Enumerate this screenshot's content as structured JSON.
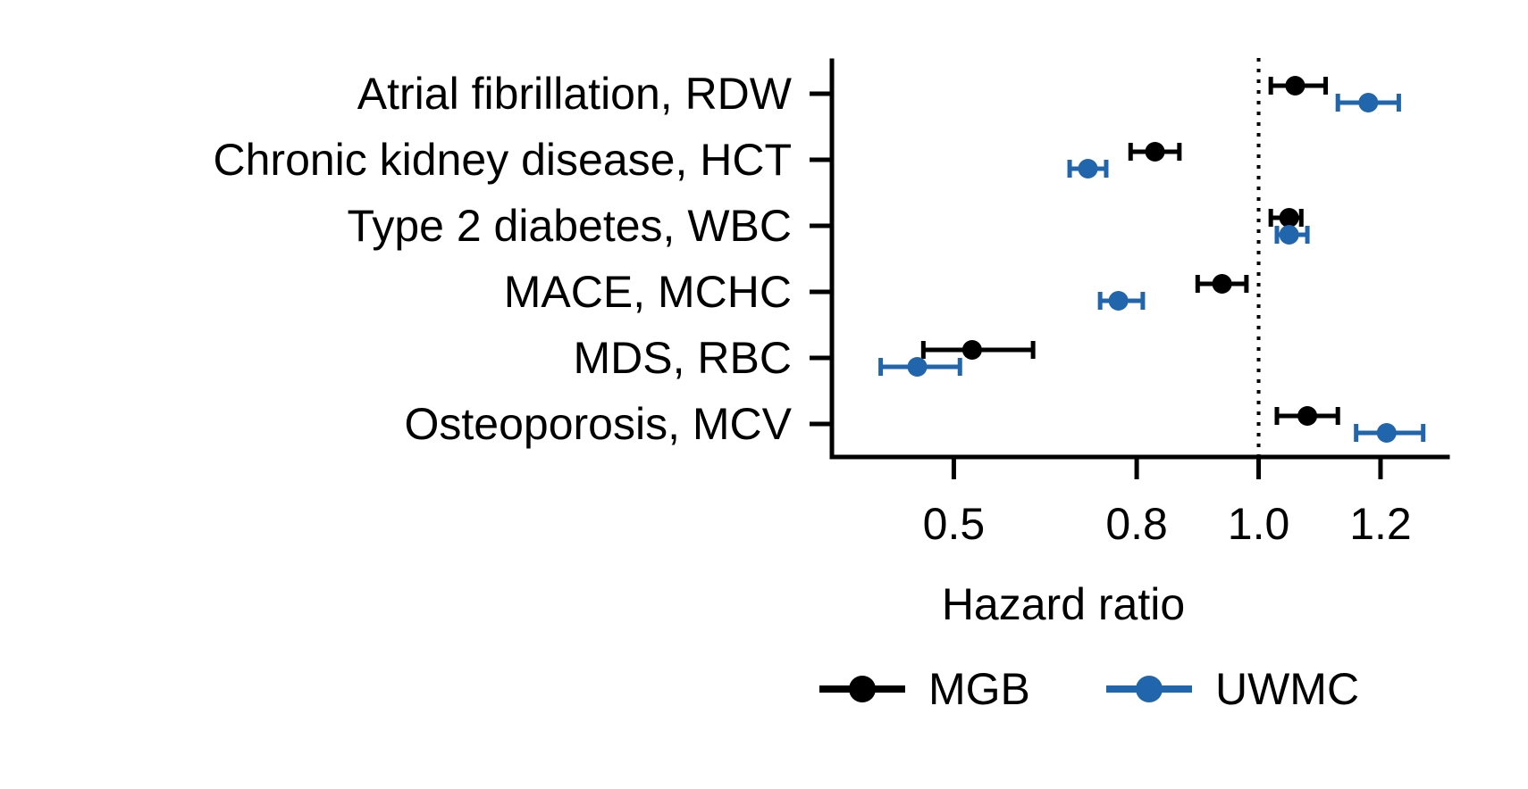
{
  "chart_data": {
    "type": "scatter",
    "subtype": "forest-plot-with-error-bars",
    "title": "",
    "xlabel": "Hazard ratio",
    "ylabel": "",
    "xlim": [
      0.3,
      1.31
    ],
    "x_ticks": [
      0.5,
      0.8,
      1.0,
      1.2
    ],
    "x_tick_labels": [
      "0.5",
      "0.8",
      "1.0",
      "1.2"
    ],
    "reference_line": 1.0,
    "grid": false,
    "legend_position": "bottom",
    "categories": [
      "Atrial fibrillation, RDW",
      "Chronic kidney disease, HCT",
      "Type 2 diabetes, WBC",
      "MACE, MCHC",
      "MDS, RBC",
      "Osteoporosis, MCV"
    ],
    "series": [
      {
        "name": "MGB",
        "color": "#000000",
        "values": [
          1.06,
          0.83,
          1.05,
          0.94,
          0.53,
          1.08
        ],
        "ci_low": [
          1.02,
          0.79,
          1.02,
          0.9,
          0.45,
          1.03
        ],
        "ci_high": [
          1.11,
          0.87,
          1.07,
          0.98,
          0.63,
          1.13
        ]
      },
      {
        "name": "UWMC",
        "color": "#2166ac",
        "values": [
          1.18,
          0.72,
          1.05,
          0.77,
          0.44,
          1.21
        ],
        "ci_low": [
          1.13,
          0.69,
          1.03,
          0.74,
          0.38,
          1.16
        ],
        "ci_high": [
          1.23,
          0.75,
          1.08,
          0.81,
          0.51,
          1.27
        ]
      }
    ]
  },
  "colors": {
    "background": "#ffffff",
    "axis": "#000000",
    "mgb": "#000000",
    "uwmc": "#2166ac"
  }
}
